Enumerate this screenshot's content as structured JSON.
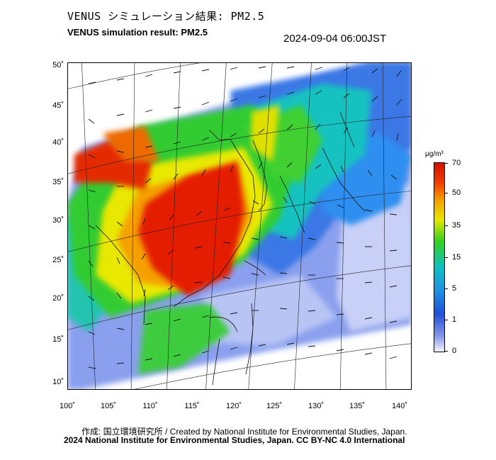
{
  "header": {
    "title_jp": "VENUS シミュレーション結果: PM2.5",
    "title_en": "VENUS simulation result: PM2.5",
    "timestamp": "2024-09-04 06:00JST"
  },
  "axes": {
    "y_labels": [
      "50˚",
      "45˚",
      "40˚",
      "35˚",
      "30˚",
      "25˚",
      "20˚",
      "15˚",
      "10˚"
    ],
    "x_labels": [
      "100˚",
      "105˚",
      "110˚",
      "115˚",
      "120˚",
      "125˚",
      "130˚",
      "135˚",
      "140˚"
    ]
  },
  "colorbar": {
    "unit": "μg/m³",
    "labels": [
      "70",
      "50",
      "35",
      "15",
      "5",
      "1",
      "0"
    ]
  },
  "credits": {
    "line1": "作成: 国立環境研究所 / Created by National Institute for Environmental Studies, Japan.",
    "line2": "2024 National Institute for Environmental Studies, Japan. CC BY-NC 4.0 International"
  },
  "colors": {
    "high": "#e41a00",
    "mid_high": "#f0a000",
    "mid": "#30d020",
    "low_mid": "#10c0c0",
    "low": "#2a6fe0",
    "very_low": "#a8b4f0"
  }
}
